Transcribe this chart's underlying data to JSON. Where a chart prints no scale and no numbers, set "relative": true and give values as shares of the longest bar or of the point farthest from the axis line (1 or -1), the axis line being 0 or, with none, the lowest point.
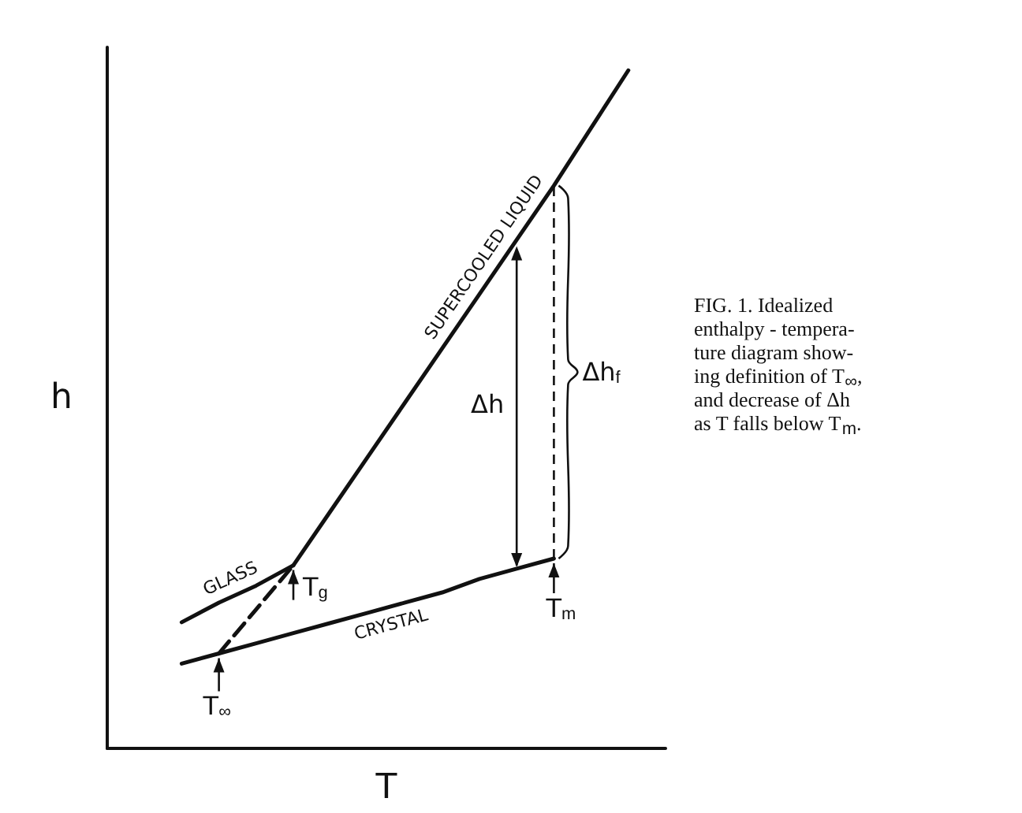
{
  "chart_data": {
    "type": "line",
    "relative": true,
    "xlabel": "T",
    "ylabel": "h",
    "tick_labels": false,
    "grid": false,
    "marker": "none",
    "categories": [
      null,
      null,
      null,
      null,
      null,
      null,
      null,
      null,
      null,
      null,
      null,
      null,
      null,
      null,
      null,
      null
    ],
    "series": [
      {
        "name": "GLASS",
        "color": "#111111",
        "values": [
          null,
          null,
          0.186,
          0.215,
          0.24,
          0.27,
          null,
          null,
          null,
          null,
          null,
          null,
          null,
          null,
          null,
          null
        ]
      },
      {
        "name": "SUPERCOOLED LIQUID",
        "color": "#111111",
        "values": [
          null,
          null,
          null,
          null,
          null,
          0.27,
          0.35,
          0.43,
          0.51,
          0.59,
          0.67,
          0.75,
          0.83,
          0.915,
          1.0,
          null
        ]
      },
      {
        "name": "CRYSTAL",
        "color": "#111111",
        "values": [
          null,
          null,
          0.125,
          0.14,
          0.155,
          0.17,
          0.185,
          0.2,
          0.215,
          0.23,
          0.25,
          0.265,
          0.28,
          null,
          null,
          null
        ]
      },
      {
        "color": "#111111",
        "line_style": "dashed",
        "values": [
          null,
          null,
          null,
          0.14,
          0.205,
          0.27,
          null,
          null,
          null,
          null,
          null,
          null,
          null,
          null,
          null,
          null
        ]
      }
    ],
    "annotations": [
      "T$_{g}$",
      "T$_{m}$",
      "T$_{∞}$",
      "Δh",
      "Δh$_{f}$",
      "FIG. 1. Idealized\nenthalpy - tempera-\nture diagram show-\ning definition of T$_{∞}$,\nand decrease of Δh\nas T falls below T$_{m}$."
    ]
  }
}
